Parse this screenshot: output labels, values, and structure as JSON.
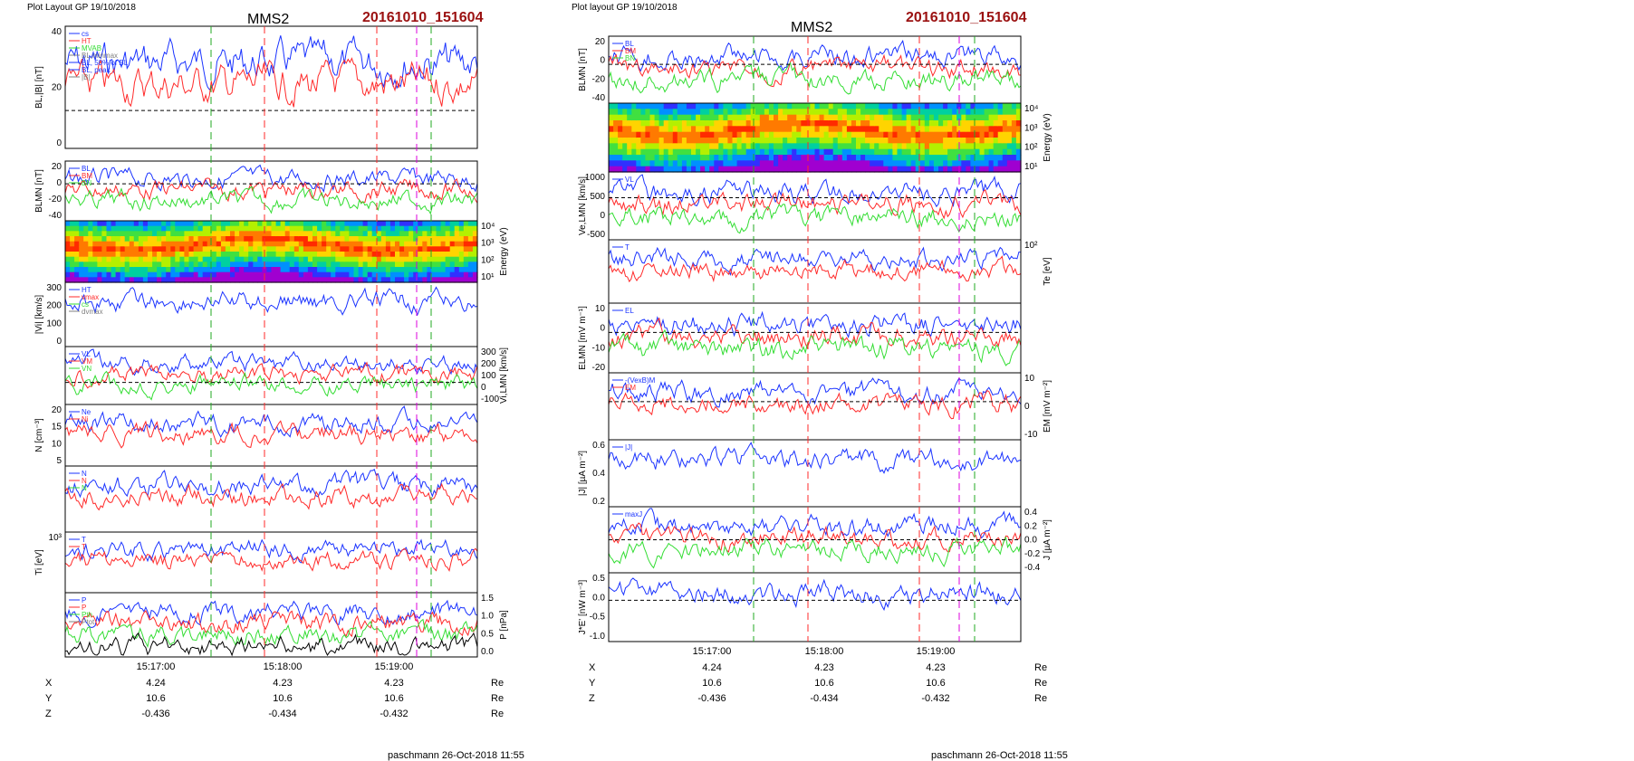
{
  "left": {
    "layout_label": "Plot Layout GP 19/10/2018",
    "spacecraft": "MMS2",
    "event_id": "20161010_151604",
    "footer": "paschmann 26-Oct-2018 11:55",
    "time_ticks": [
      "15:17:00",
      "15:18:00",
      "15:19:00"
    ],
    "ephemeris": {
      "rows": [
        {
          "name": "X",
          "values": [
            "4.24",
            "4.23",
            "4.23"
          ],
          "unit": "Re"
        },
        {
          "name": "Y",
          "values": [
            "10.6",
            "10.6",
            "10.6"
          ],
          "unit": "Re"
        },
        {
          "name": "Z",
          "values": [
            "-0.436",
            "-0.434",
            "-0.432"
          ],
          "unit": "Re"
        }
      ]
    },
    "panels": [
      {
        "ylabel": "BL,|B| [nT]",
        "ticks": [
          "40",
          "20",
          "0"
        ],
        "legend": [
          "cs",
          "HT",
          "MVAB",
          "BL,minmax",
          "BL, 50% of BL",
          "BL, peak",
          "|B|"
        ]
      },
      {
        "ylabel": "BLMN [nT]",
        "ticks": [
          "20",
          "0",
          "-20",
          "-40"
        ],
        "legend": [
          "BL",
          "BM",
          "BN"
        ]
      },
      {
        "ylabel": "Energy (eV)",
        "ticks": [
          "10⁴",
          "10³",
          "10²",
          "10¹"
        ]
      },
      {
        "ylabel": "|Vi| [km/s]",
        "ticks": [
          "300",
          "200",
          "100",
          "0"
        ],
        "legend": [
          "HT",
          "vmax",
          "cs",
          "dvmax"
        ]
      },
      {
        "ylabel": "Vi,LMN [km/s]",
        "ticks": [
          "300",
          "200",
          "100",
          "0",
          "-100"
        ],
        "legend": [
          "VL",
          "VM",
          "VN"
        ]
      },
      {
        "ylabel": "N [cm⁻³]",
        "ticks": [
          "20",
          "15",
          "10",
          "5"
        ],
        "legend": [
          "Ne",
          "Ni"
        ]
      },
      {
        "ylabel": "",
        "ticks": [],
        "legend": [
          "N",
          "N",
          "N"
        ]
      },
      {
        "ylabel": "Ti [eV]",
        "ticks": [
          "10³"
        ],
        "legend": [
          "T",
          "T"
        ]
      },
      {
        "ylabel": "P [nPa]",
        "ticks": [
          "1.5",
          "1.0",
          "0.5",
          "0.0"
        ],
        "legend": [
          "P",
          "P",
          "Pth",
          "Ptot"
        ]
      }
    ]
  },
  "right": {
    "layout_label": "Plot layout GP 19/10/2018",
    "spacecraft": "MMS2",
    "event_id": "20161010_151604",
    "footer": "paschmann 26-Oct-2018 11:55",
    "time_ticks": [
      "15:17:00",
      "15:18:00",
      "15:19:00"
    ],
    "ephemeris": {
      "rows": [
        {
          "name": "X",
          "values": [
            "4.24",
            "4.23",
            "4.23"
          ],
          "unit": "Re"
        },
        {
          "name": "Y",
          "values": [
            "10.6",
            "10.6",
            "10.6"
          ],
          "unit": "Re"
        },
        {
          "name": "Z",
          "values": [
            "-0.436",
            "-0.434",
            "-0.432"
          ],
          "unit": "Re"
        }
      ]
    },
    "panels": [
      {
        "ylabel": "BLMN [nT]",
        "ticks": [
          "20",
          "0",
          "-20",
          "-40"
        ],
        "legend": [
          "BL",
          "BM",
          "BN"
        ]
      },
      {
        "ylabel": "Energy (eV)",
        "ticks": [
          "10⁴",
          "10³",
          "10²",
          "10¹"
        ]
      },
      {
        "ylabel": "Ve,LMN [km/s]",
        "ticks": [
          "1000",
          "500",
          "0",
          "-500"
        ],
        "legend": [
          "VL"
        ]
      },
      {
        "ylabel": "Te [eV]",
        "ticks": [
          "10²"
        ],
        "legend": [
          "T"
        ]
      },
      {
        "ylabel": "ELMN [mV m⁻¹]",
        "ticks": [
          "10",
          "0",
          "-10",
          "-20"
        ],
        "legend": [
          "EL"
        ]
      },
      {
        "ylabel": "EM [mV m⁻²]",
        "ticks": [
          "10",
          "0",
          "-10"
        ],
        "legend": [
          "-(VexB)M",
          "EM"
        ]
      },
      {
        "ylabel": "|J| [µA m⁻²]",
        "ticks": [
          "0.6",
          "0.4",
          "0.2"
        ],
        "legend": [
          "|J|"
        ]
      },
      {
        "ylabel": "J [µA m⁻²]",
        "ticks": [
          "0.4",
          "0.2",
          "0.0",
          "-0.2",
          "-0.4"
        ],
        "legend": [
          "maxJ"
        ]
      },
      {
        "ylabel": "J*E' [nW m⁻³]",
        "ticks": [
          "0.5",
          "0.0",
          "-0.5",
          "-1.0"
        ],
        "legend": []
      }
    ]
  },
  "colors": {
    "title_red": "#9b1111",
    "blue": "#1a33ff",
    "red": "#ff2a2a",
    "green": "#33dd33",
    "gray": "#808080",
    "magenta": "#dd00dd"
  },
  "chart_data": {
    "type": "line",
    "title": "MMS2",
    "xlabel": "",
    "x": [
      "15:17:00",
      "15:18:00",
      "15:19:00"
    ]
  }
}
